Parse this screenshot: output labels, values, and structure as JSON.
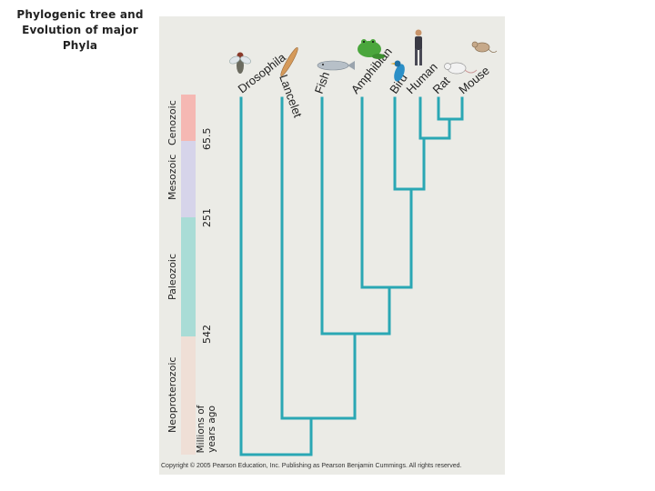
{
  "title": "Phylogenic tree and Evolution of major Phyla",
  "eras": [
    {
      "name": "Cenozoic",
      "color": "#f5b8b3"
    },
    {
      "name": "Mesozoic",
      "color": "#d6d4ea"
    },
    {
      "name": "Paleozoic",
      "color": "#a9dcd6"
    },
    {
      "name": "Neoproterozoic",
      "color": "#efdfd6"
    }
  ],
  "time_ticks": [
    "65.5",
    "251",
    "542"
  ],
  "axis_unit": [
    "Millions of",
    "years ago"
  ],
  "taxa": [
    "Drosophila",
    "Lancelet",
    "Fish",
    "Amphibian",
    "Bird",
    "Human",
    "Rat",
    "Mouse"
  ],
  "tree_color": "#2aa7b4",
  "copyright": "Copyright © 2005 Pearson Education, Inc. Publishing as Pearson Benjamin Cummings. All rights reserved.",
  "icons": [
    "drosophila-icon",
    "lancelet-icon",
    "fish-icon",
    "frog-icon",
    "bird-icon",
    "human-icon",
    "rat-icon",
    "mouse-icon"
  ]
}
